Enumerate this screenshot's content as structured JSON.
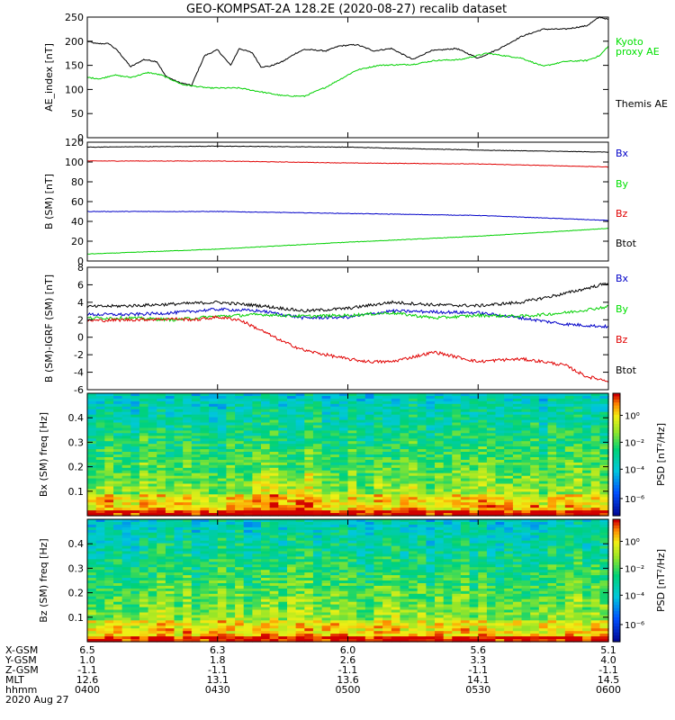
{
  "title": "GEO-KOMPSAT-2A 128.2E (2020-08-27) recalib dataset",
  "colors": {
    "black": "#000000",
    "green": "#00d000",
    "blue": "#0000c8",
    "red": "#e00000",
    "legend_green": "#00e000"
  },
  "chart_data": [
    {
      "type": "line",
      "id": "ae",
      "ylabel": "AE_index [nT]",
      "ylim": [
        0,
        250
      ],
      "yticks": [
        0,
        50,
        100,
        150,
        200,
        250
      ],
      "legend": [
        {
          "text": "Kyoto",
          "color": "green"
        },
        {
          "text": "proxy AE",
          "color": "green"
        },
        {
          "text": "Themis AE",
          "color": "black"
        }
      ],
      "series": [
        {
          "name": "Themis AE",
          "color": "black",
          "x": [
            0,
            2,
            5,
            7,
            10,
            13,
            16,
            18,
            21,
            24,
            27,
            30,
            33,
            35,
            38,
            40,
            42,
            45,
            48,
            50,
            55,
            58,
            62,
            66,
            70,
            75,
            79,
            85,
            90,
            95,
            100,
            105,
            110,
            115,
            118,
            120
          ],
          "y": [
            200,
            195,
            195,
            180,
            147,
            162,
            158,
            128,
            115,
            108,
            170,
            182,
            150,
            185,
            176,
            147,
            148,
            158,
            175,
            183,
            180,
            190,
            193,
            180,
            185,
            162,
            180,
            185,
            165,
            185,
            210,
            225,
            225,
            232,
            250,
            245
          ]
        },
        {
          "name": "Kyoto proxy AE",
          "color": "green",
          "x": [
            0,
            3,
            6,
            10,
            14,
            17,
            22,
            28,
            35,
            45,
            50,
            55,
            62,
            67,
            75,
            80,
            86,
            92,
            100,
            105,
            110,
            115,
            118,
            120
          ],
          "y": [
            125,
            122,
            130,
            125,
            135,
            130,
            110,
            103,
            103,
            87,
            86,
            105,
            140,
            150,
            152,
            160,
            162,
            175,
            165,
            148,
            158,
            160,
            170,
            190
          ]
        }
      ]
    },
    {
      "type": "line",
      "id": "bsm",
      "ylabel": "B (SM) [nT]",
      "ylim": [
        0,
        120
      ],
      "yticks": [
        0,
        20,
        40,
        60,
        80,
        100,
        120
      ],
      "legend": [
        {
          "text": "Bx",
          "color": "blue"
        },
        {
          "text": "By",
          "color": "green"
        },
        {
          "text": "Bz",
          "color": "red"
        },
        {
          "text": "Btot",
          "color": "black"
        }
      ],
      "series": [
        {
          "name": "Btot",
          "color": "black",
          "x": [
            0,
            30,
            60,
            90,
            120
          ],
          "y": [
            115,
            116,
            115,
            112,
            110
          ]
        },
        {
          "name": "Bz",
          "color": "red",
          "x": [
            0,
            30,
            60,
            90,
            120
          ],
          "y": [
            101,
            101,
            99,
            98,
            95
          ]
        },
        {
          "name": "Bx",
          "color": "blue",
          "x": [
            0,
            30,
            60,
            90,
            120
          ],
          "y": [
            50,
            50,
            48,
            46,
            41
          ]
        },
        {
          "name": "By",
          "color": "green",
          "x": [
            0,
            30,
            60,
            90,
            120
          ],
          "y": [
            7,
            12,
            19,
            25,
            33
          ]
        }
      ]
    },
    {
      "type": "line",
      "id": "bdiff",
      "ylabel": "B (SM)-IGRF (SM) [nT]",
      "ylim": [
        -6,
        8
      ],
      "yticks": [
        -6,
        -4,
        -2,
        0,
        2,
        4,
        6,
        8
      ],
      "legend": [
        {
          "text": "Bx",
          "color": "blue"
        },
        {
          "text": "By",
          "color": "green"
        },
        {
          "text": "Bz",
          "color": "red"
        },
        {
          "text": "Btot",
          "color": "black"
        }
      ],
      "series": [
        {
          "name": "Btot",
          "color": "black",
          "x": [
            0,
            10,
            20,
            30,
            40,
            50,
            60,
            70,
            80,
            90,
            100,
            110,
            120
          ],
          "y": [
            3.5,
            3.6,
            3.8,
            4.0,
            3.6,
            3.0,
            3.3,
            4.0,
            3.7,
            3.6,
            4.0,
            5.0,
            6.2
          ]
        },
        {
          "name": "Bx",
          "color": "blue",
          "x": [
            0,
            10,
            20,
            30,
            40,
            50,
            60,
            70,
            80,
            90,
            100,
            110,
            120
          ],
          "y": [
            2.6,
            2.6,
            2.8,
            3.2,
            3.0,
            2.2,
            2.3,
            3.0,
            2.9,
            2.8,
            2.2,
            1.5,
            1.2
          ]
        },
        {
          "name": "By",
          "color": "green",
          "x": [
            0,
            10,
            20,
            30,
            40,
            50,
            60,
            70,
            80,
            90,
            100,
            110,
            120
          ],
          "y": [
            2.2,
            2.2,
            2.0,
            2.4,
            2.6,
            2.4,
            2.5,
            2.8,
            2.2,
            2.5,
            2.4,
            2.8,
            3.5
          ]
        },
        {
          "name": "Bz",
          "color": "red",
          "x": [
            0,
            10,
            20,
            25,
            30,
            35,
            40,
            45,
            50,
            60,
            65,
            70,
            80,
            90,
            95,
            100,
            105,
            110,
            115,
            120
          ],
          "y": [
            1.9,
            2.0,
            2.1,
            2.0,
            2.3,
            2.0,
            0.8,
            -0.5,
            -1.5,
            -2.5,
            -2.8,
            -2.8,
            -1.7,
            -2.8,
            -2.6,
            -2.5,
            -2.8,
            -3.2,
            -4.5,
            -5.0
          ]
        }
      ]
    },
    {
      "type": "heatmap",
      "id": "bx_psd",
      "ylabel": "Bx (SM) freq [Hz]",
      "ylim": [
        0,
        0.5
      ],
      "yticks": [
        0.1,
        0.2,
        0.3,
        0.4
      ],
      "colorbar": {
        "label": "PSD [nT²/Hz]",
        "ticks": [
          "10⁰",
          "10⁻²",
          "10⁻⁴",
          "10⁻⁶"
        ]
      }
    },
    {
      "type": "heatmap",
      "id": "bz_psd",
      "ylabel": "Bz (SM) freq [Hz]",
      "ylim": [
        0,
        0.5
      ],
      "yticks": [
        0.1,
        0.2,
        0.3,
        0.4
      ],
      "colorbar": {
        "label": "PSD [nT²/Hz]",
        "ticks": [
          "10⁰",
          "10⁻²",
          "10⁻⁴",
          "10⁻⁶"
        ]
      }
    }
  ],
  "xaxis": {
    "range_minutes": [
      0,
      120
    ],
    "tick_minutes": [
      0,
      30,
      60,
      90,
      120
    ],
    "rows": [
      {
        "label": "X-GSM",
        "values": [
          "6.5",
          "6.3",
          "6.0",
          "5.6",
          "5.1"
        ]
      },
      {
        "label": "Y-GSM",
        "values": [
          "1.0",
          "1.8",
          "2.6",
          "3.3",
          "4.0"
        ]
      },
      {
        "label": "Z-GSM",
        "values": [
          "-1.1",
          "-1.1",
          "-1.1",
          "-1.1",
          "-1.1"
        ]
      },
      {
        "label": "MLT",
        "values": [
          "12.6",
          "13.1",
          "13.6",
          "14.1",
          "14.5"
        ]
      },
      {
        "label": "hhmm",
        "values": [
          "0400",
          "0430",
          "0500",
          "0530",
          "0600"
        ]
      }
    ],
    "date": "2020 Aug 27"
  }
}
